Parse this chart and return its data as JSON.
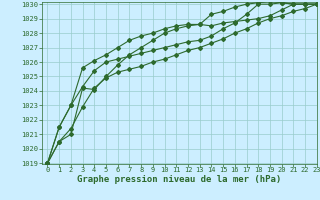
{
  "xlabel": "Graphe pression niveau de la mer (hPa)",
  "ylim": [
    1019,
    1030
  ],
  "xlim": [
    -0.5,
    23
  ],
  "yticks": [
    1019,
    1020,
    1021,
    1022,
    1023,
    1024,
    1025,
    1026,
    1027,
    1028,
    1029,
    1030
  ],
  "xticks": [
    0,
    1,
    2,
    3,
    4,
    5,
    6,
    7,
    8,
    9,
    10,
    11,
    12,
    13,
    14,
    15,
    16,
    17,
    18,
    19,
    20,
    21,
    22,
    23
  ],
  "background_color": "#cceeff",
  "grid_color": "#99cccc",
  "line_color": "#2d6a2d",
  "lines": [
    [
      1019.0,
      1020.5,
      1021.4,
      1022.9,
      1024.2,
      1024.9,
      1025.3,
      1025.5,
      1025.7,
      1026.0,
      1026.2,
      1026.5,
      1026.8,
      1027.0,
      1027.3,
      1027.6,
      1028.0,
      1028.3,
      1028.7,
      1029.0,
      1029.2,
      1029.5,
      1029.7,
      1030.0
    ],
    [
      1019.0,
      1020.5,
      1021.0,
      1024.2,
      1024.1,
      1025.0,
      1025.8,
      1026.5,
      1027.0,
      1027.5,
      1028.0,
      1028.3,
      1028.5,
      1028.6,
      1029.3,
      1029.5,
      1029.8,
      1030.0,
      1030.1,
      1030.2,
      1030.1,
      1030.0,
      1030.0,
      1030.0
    ],
    [
      1019.0,
      1021.5,
      1023.0,
      1025.6,
      1026.1,
      1026.5,
      1027.0,
      1027.5,
      1027.8,
      1028.0,
      1028.3,
      1028.5,
      1028.6,
      1028.6,
      1028.5,
      1028.7,
      1028.8,
      1028.9,
      1029.0,
      1029.2,
      1029.6,
      1030.0,
      1030.0,
      1030.0
    ],
    [
      1019.0,
      1021.5,
      1023.0,
      1024.3,
      1025.4,
      1026.0,
      1026.2,
      1026.4,
      1026.6,
      1026.8,
      1027.0,
      1027.2,
      1027.4,
      1027.5,
      1027.8,
      1028.3,
      1028.7,
      1029.3,
      1030.0,
      1030.0,
      1030.1,
      1030.0,
      1030.0,
      1030.0
    ]
  ],
  "marker": "D",
  "markersize": 2.0,
  "linewidth": 0.8,
  "xlabel_fontsize": 6.5,
  "tick_fontsize": 5.0,
  "tick_color": "#2d6a2d"
}
